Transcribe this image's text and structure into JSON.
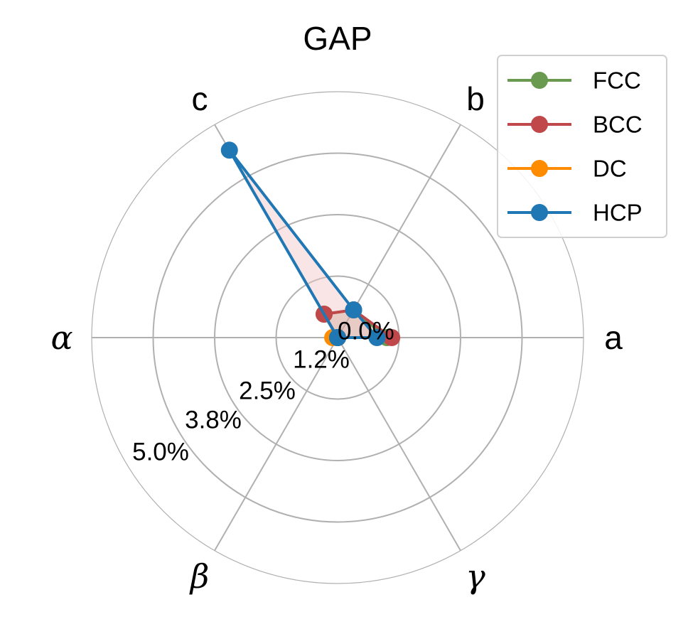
{
  "chart_data": {
    "type": "radar",
    "title": "GAP",
    "axes": [
      "a",
      "b",
      "c",
      "α",
      "β",
      "γ"
    ],
    "rlim": [
      0,
      5.0
    ],
    "r_ticks": [
      0.0,
      1.25,
      2.5,
      3.75,
      5.0
    ],
    "r_tick_labels": [
      "0.0%",
      "1.2%",
      "2.5%",
      "3.8%",
      "5.0%"
    ],
    "grid": true,
    "legend_position": "top-right",
    "series": [
      {
        "name": "FCC",
        "color": "#6a9a4f",
        "values": [
          1.0,
          0.65,
          0.55,
          0.0,
          0.0,
          0.0
        ]
      },
      {
        "name": "BCC",
        "color": "#c0474a",
        "values": [
          1.1,
          0.65,
          0.55,
          0.0,
          0.0,
          0.0
        ]
      },
      {
        "name": "DC",
        "color": "#ff8c00",
        "values": [
          0.0,
          0.0,
          0.0,
          0.1,
          0.0,
          0.0
        ]
      },
      {
        "name": "HCP",
        "color": "#1f77b4",
        "values": [
          0.8,
          0.65,
          4.4,
          0.0,
          0.0,
          0.0
        ]
      }
    ],
    "fill_colors": {
      "HCP": "#f2c6c6"
    }
  }
}
